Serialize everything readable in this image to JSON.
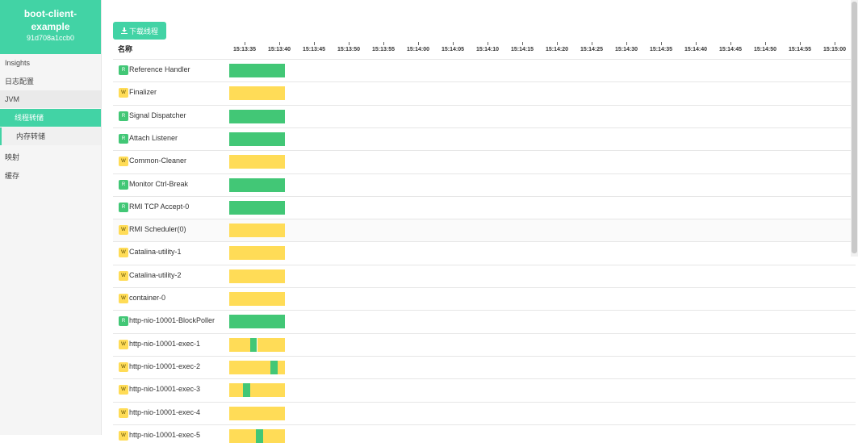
{
  "app": {
    "name_line1": "boot-client-",
    "name_line2": "example",
    "id": "91d708a1ccb0"
  },
  "colors": {
    "accent": "#42d3a5",
    "runnable": "#42c776",
    "waiting": "#ffdc57"
  },
  "nav": {
    "insights": "Insights",
    "logging": "日志配置",
    "jvm": "JVM",
    "threads": "线程转储",
    "heap": "内存转储",
    "mappings": "映射",
    "caches": "缓存"
  },
  "toolbar": {
    "download_label": "下载线程",
    "download_icon": "download-icon"
  },
  "table": {
    "name_header": "名称",
    "ticks": [
      "15:13:35",
      "15:13:40",
      "15:13:45",
      "15:13:50",
      "15:13:55",
      "15:14:00",
      "15:14:05",
      "15:14:10",
      "15:14:15",
      "15:14:20",
      "15:14:25",
      "15:14:30",
      "15:14:35",
      "15:14:40",
      "15:14:45",
      "15:14:50",
      "15:14:55",
      "15:15:00"
    ],
    "threads": [
      {
        "state": "R",
        "name": "Reference Handler",
        "segments": [
          {
            "s": "R",
            "from": 0,
            "to": 1
          }
        ]
      },
      {
        "state": "W",
        "name": "Finalizer",
        "segments": [
          {
            "s": "W",
            "from": 0,
            "to": 1
          }
        ]
      },
      {
        "state": "R",
        "name": "Signal Dispatcher",
        "segments": [
          {
            "s": "R",
            "from": 0,
            "to": 1
          }
        ]
      },
      {
        "state": "R",
        "name": "Attach Listener",
        "segments": [
          {
            "s": "R",
            "from": 0,
            "to": 1
          }
        ]
      },
      {
        "state": "W",
        "name": "Common-Cleaner",
        "segments": [
          {
            "s": "W",
            "from": 0,
            "to": 1
          }
        ]
      },
      {
        "state": "R",
        "name": "Monitor Ctrl-Break",
        "segments": [
          {
            "s": "R",
            "from": 0,
            "to": 1
          }
        ]
      },
      {
        "state": "R",
        "name": "RMI TCP Accept-0",
        "segments": [
          {
            "s": "R",
            "from": 0,
            "to": 1
          }
        ]
      },
      {
        "state": "W",
        "name": "RMI Scheduler(0)",
        "segments": [
          {
            "s": "W",
            "from": 0,
            "to": 1
          }
        ]
      },
      {
        "state": "W",
        "name": "Catalina-utility-1",
        "segments": [
          {
            "s": "W",
            "from": 0,
            "to": 1
          }
        ]
      },
      {
        "state": "W",
        "name": "Catalina-utility-2",
        "segments": [
          {
            "s": "W",
            "from": 0,
            "to": 1
          }
        ]
      },
      {
        "state": "W",
        "name": "container-0",
        "segments": [
          {
            "s": "W",
            "from": 0,
            "to": 1
          }
        ]
      },
      {
        "state": "R",
        "name": "http-nio-10001-BlockPoller",
        "segments": [
          {
            "s": "R",
            "from": 0,
            "to": 1
          }
        ]
      },
      {
        "state": "W",
        "name": "http-nio-10001-exec-1",
        "segments": [
          {
            "s": "W",
            "from": 0,
            "to": 0.37
          },
          {
            "s": "R",
            "from": 0.37,
            "to": 0.5
          },
          {
            "s": "W",
            "from": 0.5,
            "to": 1
          }
        ]
      },
      {
        "state": "W",
        "name": "http-nio-10001-exec-2",
        "segments": [
          {
            "s": "W",
            "from": 0,
            "to": 0.74
          },
          {
            "s": "R",
            "from": 0.74,
            "to": 0.87
          },
          {
            "s": "W",
            "from": 0.87,
            "to": 1
          }
        ]
      },
      {
        "state": "W",
        "name": "http-nio-10001-exec-3",
        "segments": [
          {
            "s": "W",
            "from": 0,
            "to": 0.24
          },
          {
            "s": "R",
            "from": 0.24,
            "to": 0.37
          },
          {
            "s": "W",
            "from": 0.37,
            "to": 1
          }
        ]
      },
      {
        "state": "W",
        "name": "http-nio-10001-exec-4",
        "segments": [
          {
            "s": "W",
            "from": 0,
            "to": 1
          }
        ]
      },
      {
        "state": "W",
        "name": "http-nio-10001-exec-5",
        "segments": [
          {
            "s": "W",
            "from": 0,
            "to": 0.48
          },
          {
            "s": "R",
            "from": 0.48,
            "to": 0.61
          },
          {
            "s": "W",
            "from": 0.61,
            "to": 1
          }
        ]
      }
    ]
  }
}
